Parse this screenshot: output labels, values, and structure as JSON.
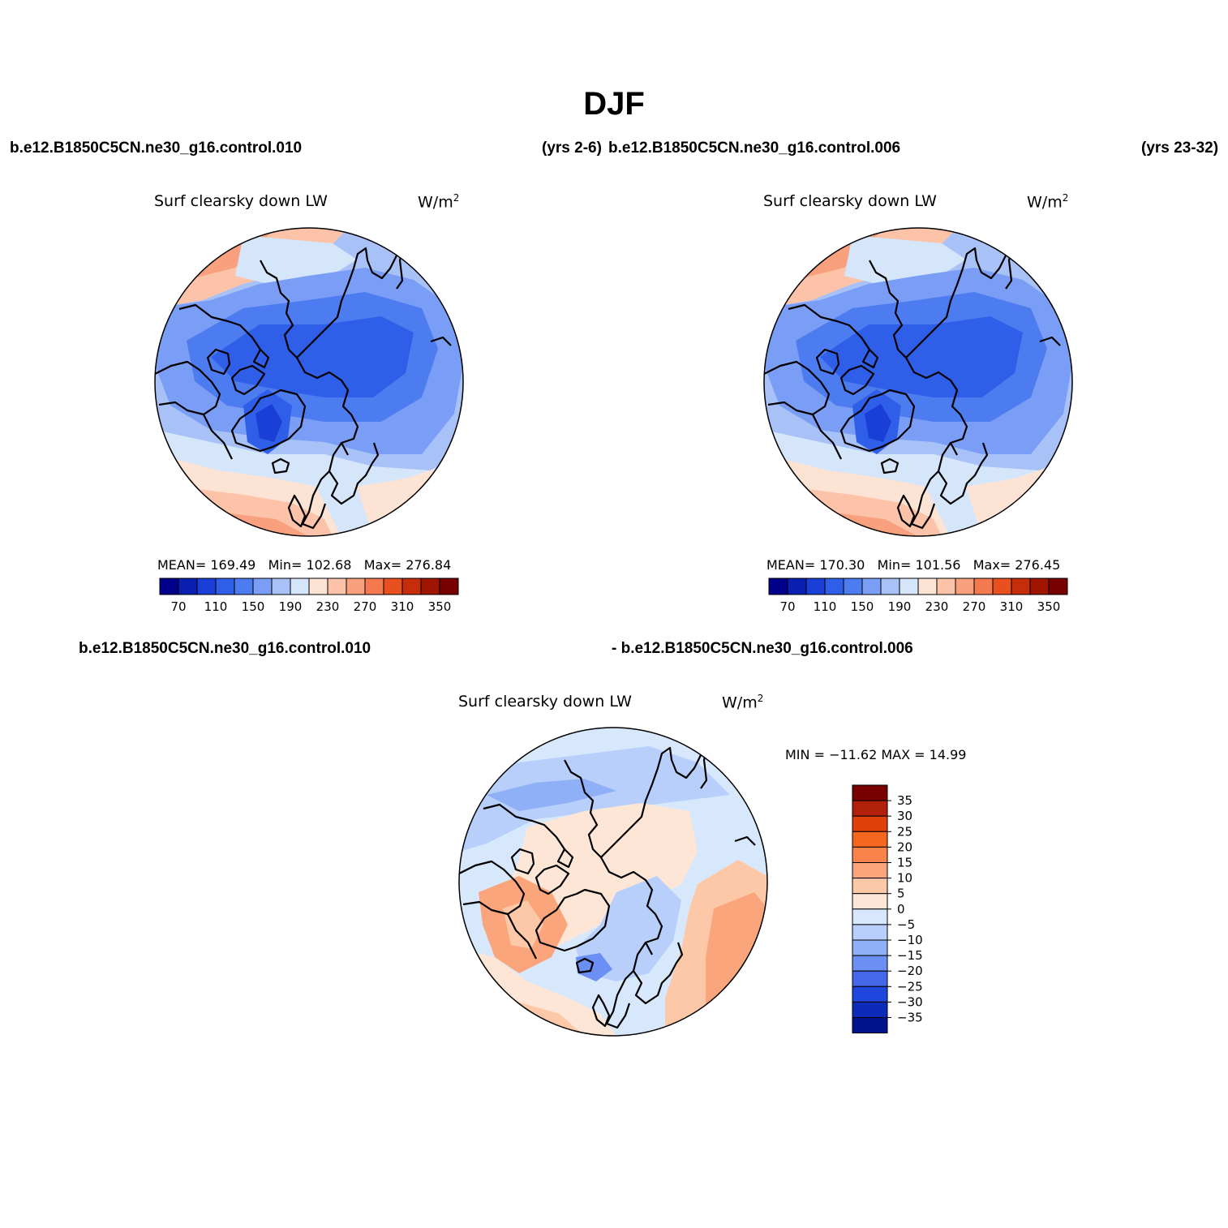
{
  "title": "DJF",
  "header": {
    "case_a": "b.e12.B1850C5CN.ne30_g16.control.010",
    "years_a": "(yrs 2-6)",
    "case_b": "b.e12.B1850C5CN.ne30_g16.control.006",
    "years_b": "(yrs 23-32)",
    "diff_case_a": "b.e12.B1850C5CN.ne30_g16.control.010",
    "diff_case_b": "- b.e12.B1850C5CN.ne30_g16.control.006"
  },
  "panels": [
    {
      "variable": "Surf clearsky down LW",
      "units_base": "W/m",
      "units_exp": "2",
      "stats": {
        "mean_label": "MEAN=",
        "mean": "169.49",
        "min_label": "Min=",
        "min": "102.68",
        "max_label": "Max=",
        "max": "276.84"
      }
    },
    {
      "variable": "Surf clearsky down LW",
      "units_base": "W/m",
      "units_exp": "2",
      "stats": {
        "mean_label": "MEAN=",
        "mean": "170.30",
        "min_label": "Min=",
        "min": "101.56",
        "max_label": "Max=",
        "max": "276.45"
      }
    },
    {
      "variable": "Surf clearsky down LW",
      "units_base": "W/m",
      "units_exp": "2",
      "stats_text": "MIN = −11.62 MAX =  14.99"
    }
  ],
  "colorbar_abs": {
    "colors": [
      "#00008b",
      "#0a1fb0",
      "#1a3fd6",
      "#2f5ee8",
      "#4d7cf0",
      "#7a9ef5",
      "#a8c2f8",
      "#d5e6fb",
      "#fde3d3",
      "#fcc3a8",
      "#f9a07e",
      "#f4794f",
      "#e9501f",
      "#c52d0b",
      "#a01500",
      "#780000"
    ],
    "ticks": [
      "70",
      "110",
      "150",
      "190",
      "230",
      "270",
      "310",
      "350"
    ]
  },
  "colorbar_diff": {
    "colors": [
      "#780000",
      "#b0200a",
      "#e0400a",
      "#f5661f",
      "#f9834b",
      "#fba57c",
      "#fdc8a8",
      "#fde6d5",
      "#d8e8fc",
      "#b7cffa",
      "#8faff6",
      "#6b8ff2",
      "#4567ea",
      "#2046dd",
      "#0b2bb8",
      "#00128c"
    ],
    "ticks": [
      "35",
      "30",
      "25",
      "20",
      "15",
      "10",
      "5",
      "0",
      "−5",
      "−10",
      "−15",
      "−20",
      "−25",
      "−30",
      "−35"
    ]
  }
}
